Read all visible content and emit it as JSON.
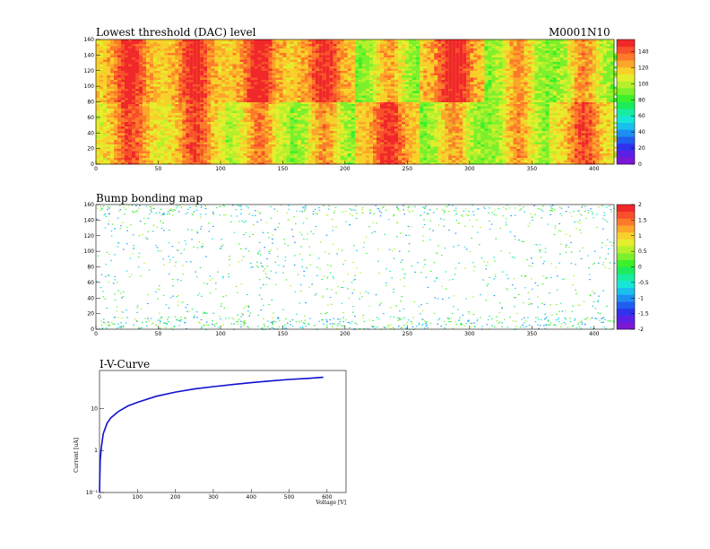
{
  "module_id": "M0001N10",
  "colors": {
    "palette": [
      "#7a18d6",
      "#5b1fe6",
      "#2f32ee",
      "#1f5ff0",
      "#1e8ff0",
      "#19c0ee",
      "#16e6d8",
      "#18eca0",
      "#1cec5c",
      "#3cf02c",
      "#7cf02c",
      "#b6f02c",
      "#e4ee2c",
      "#f8d02a",
      "#fca62a",
      "#fc7a2a",
      "#f8502a",
      "#f0282a"
    ],
    "iv_line": "#1010d0"
  },
  "chart_data": [
    {
      "id": "threshold",
      "type": "heatmap",
      "title": "Lowest threshold (DAC) level",
      "xlabel": "",
      "ylabel": "",
      "xlim": [
        0,
        416
      ],
      "ylim": [
        0,
        160
      ],
      "xticks": [
        0,
        50,
        100,
        150,
        200,
        250,
        300,
        350,
        400
      ],
      "yticks": [
        0,
        20,
        40,
        60,
        80,
        100,
        120,
        140,
        160
      ],
      "zlim": [
        0,
        155
      ],
      "zticks": [
        0,
        20,
        40,
        60,
        80,
        100,
        120,
        140
      ],
      "chip_grid": {
        "cols": 8,
        "rows": 2,
        "chip_width": 52,
        "chip_height": 80
      },
      "chip_mean_levels": [
        [
          108,
          108,
          96,
          92,
          112,
          90,
          90,
          108
        ],
        [
          116,
          116,
          116,
          116,
          88,
          120,
          90,
          92
        ]
      ],
      "hot_columns_x": [
        26,
        78,
        130,
        182,
        234,
        286,
        338,
        390
      ]
    },
    {
      "id": "bump",
      "type": "heatmap",
      "title": "Bump bonding map",
      "xlabel": "",
      "ylabel": "",
      "xlim": [
        0,
        416
      ],
      "ylim": [
        0,
        160
      ],
      "xticks": [
        0,
        50,
        100,
        150,
        200,
        250,
        300,
        350,
        400
      ],
      "yticks": [
        0,
        20,
        40,
        60,
        80,
        100,
        120,
        140,
        160
      ],
      "zlim": [
        -2,
        2
      ],
      "zticks": [
        -2,
        -1.5,
        -1,
        -0.5,
        0,
        0.5,
        1,
        1.5,
        2
      ],
      "note_values": "sparse scattered pixels mostly in range 0 to 1; background (empty) white"
    },
    {
      "id": "iv",
      "type": "line",
      "title": "I-V-Curve",
      "xlabel": "Voltage [V]",
      "ylabel": "Current [uA]",
      "xlim": [
        0,
        650
      ],
      "ylim": [
        0.1,
        80
      ],
      "yscale": "log",
      "xticks": [
        0,
        100,
        200,
        300,
        400,
        500,
        600
      ],
      "ytick_labels": [
        "10⁻¹",
        "1",
        "10"
      ],
      "ytick_values": [
        0.1,
        1,
        10
      ],
      "series": [
        {
          "x": [
            0,
            2,
            5,
            10,
            20,
            30,
            50,
            75,
            100,
            150,
            200,
            250,
            300,
            350,
            400,
            450,
            500,
            550,
            590
          ],
          "y": [
            0.1,
            0.6,
            1.2,
            2.5,
            4.5,
            6.0,
            8.5,
            11.5,
            14,
            19.5,
            24.5,
            29,
            33,
            37,
            41,
            45,
            49,
            52,
            55
          ]
        }
      ]
    }
  ]
}
